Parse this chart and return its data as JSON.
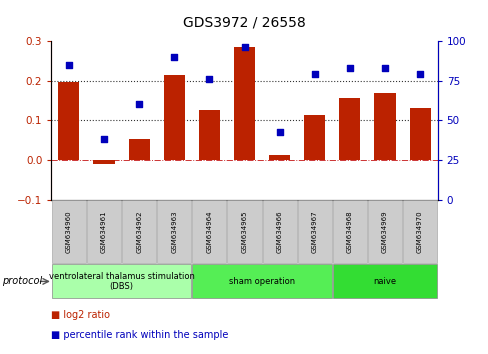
{
  "title": "GDS3972 / 26558",
  "samples": [
    "GSM634960",
    "GSM634961",
    "GSM634962",
    "GSM634963",
    "GSM634964",
    "GSM634965",
    "GSM634966",
    "GSM634967",
    "GSM634968",
    "GSM634969",
    "GSM634970"
  ],
  "log2_ratio": [
    0.197,
    -0.01,
    0.054,
    0.213,
    0.127,
    0.285,
    0.012,
    0.113,
    0.156,
    0.168,
    0.13
  ],
  "percentile_rank": [
    85,
    38,
    60,
    90,
    76,
    96,
    43,
    79,
    83,
    83,
    79
  ],
  "ylim_left": [
    -0.1,
    0.3
  ],
  "ylim_right": [
    0,
    100
  ],
  "yticks_left": [
    -0.1,
    0.0,
    0.1,
    0.2,
    0.3
  ],
  "yticks_right": [
    0,
    25,
    50,
    75,
    100
  ],
  "bar_color": "#BB2200",
  "dot_color": "#0000BB",
  "zero_line_color": "#CC3333",
  "hline_color": "#333333",
  "hlines": [
    0.1,
    0.2
  ],
  "protocols": [
    {
      "label": "ventrolateral thalamus stimulation\n(DBS)",
      "start": 0,
      "end": 3,
      "color": "#aaffaa"
    },
    {
      "label": "sham operation",
      "start": 4,
      "end": 7,
      "color": "#55ee55"
    },
    {
      "label": "naive",
      "start": 8,
      "end": 10,
      "color": "#33dd33"
    }
  ],
  "legend_bar_label": "log2 ratio",
  "legend_dot_label": "percentile rank within the sample",
  "protocol_label": "protocol",
  "sample_box_color": "#cccccc",
  "sample_box_edge": "#aaaaaa"
}
